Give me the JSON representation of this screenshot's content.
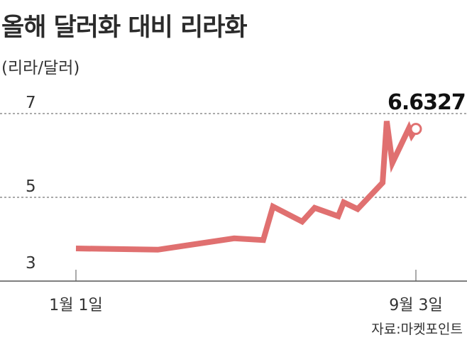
{
  "header": {
    "title": "올해 달러화 대비 리라화",
    "unit": "(리라/달러)"
  },
  "source": "자료:마켓포인트",
  "colors": {
    "line": "#e07070",
    "grid": "#555555",
    "axis": "#555555",
    "text": "#2b2b2b"
  },
  "chart_data": {
    "type": "line",
    "title": "올해 달러화 대비 리라화",
    "ylabel": "(리라/달러)",
    "xlabel": "",
    "ylim": [
      3,
      7
    ],
    "yticks": [
      {
        "value": 3,
        "label": "3"
      },
      {
        "value": 5,
        "label": "5"
      },
      {
        "value": 7,
        "label": "7"
      }
    ],
    "grid_lines": [
      5,
      7
    ],
    "xlim": [
      "2018-01-01",
      "2018-09-03"
    ],
    "xticks": [
      {
        "x": "2018-01-01",
        "label": "1월 1일"
      },
      {
        "x": "2018-09-03",
        "label": "9월 3일"
      }
    ],
    "series": [
      {
        "name": "",
        "points": [
          {
            "x": "2018-01-01",
            "y": 3.78
          },
          {
            "x": "2018-03-01",
            "y": 3.75
          },
          {
            "x": "2018-04-25",
            "y": 4.02
          },
          {
            "x": "2018-05-16",
            "y": 3.98
          },
          {
            "x": "2018-05-23",
            "y": 4.78
          },
          {
            "x": "2018-06-13",
            "y": 4.42
          },
          {
            "x": "2018-06-22",
            "y": 4.75
          },
          {
            "x": "2018-07-09",
            "y": 4.55
          },
          {
            "x": "2018-07-13",
            "y": 4.88
          },
          {
            "x": "2018-07-23",
            "y": 4.72
          },
          {
            "x": "2018-08-10",
            "y": 5.35
          },
          {
            "x": "2018-08-13",
            "y": 6.82
          },
          {
            "x": "2018-08-17",
            "y": 5.82
          },
          {
            "x": "2018-08-29",
            "y": 6.65
          },
          {
            "x": "2018-08-31",
            "y": 6.48
          },
          {
            "x": "2018-09-03",
            "y": 6.6327
          }
        ]
      }
    ],
    "annotations": [
      {
        "x": "2018-09-03",
        "y": 6.6327,
        "label": "6.6327"
      }
    ]
  }
}
